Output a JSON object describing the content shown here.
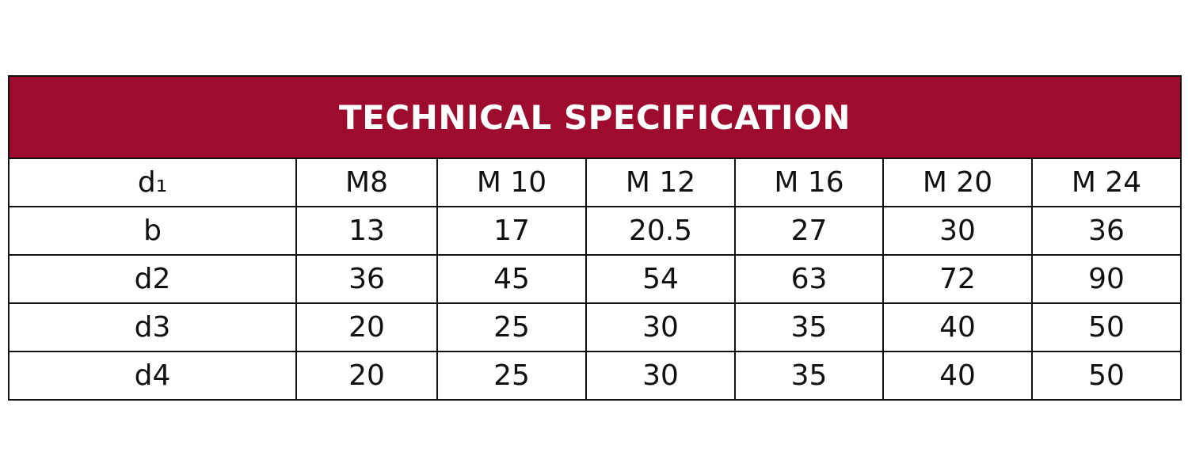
{
  "title": "TECHNICAL SPECIFICATION",
  "colors": {
    "header_background": "#9d0b2e",
    "header_text": "#ffffff",
    "border": "#111111",
    "cell_text": "#111111"
  },
  "rows": [
    [
      "d₁",
      "M8",
      "M 10",
      "M 12",
      "M 16",
      "M 20",
      "M 24"
    ],
    [
      "b",
      "13",
      "17",
      "20.5",
      "27",
      "30",
      "36"
    ],
    [
      "d2",
      "36",
      "45",
      "54",
      "63",
      "72",
      "90"
    ],
    [
      "d3",
      "20",
      "25",
      "30",
      "35",
      "40",
      "50"
    ],
    [
      "d4",
      "20",
      "25",
      "30",
      "35",
      "40",
      "50"
    ]
  ]
}
